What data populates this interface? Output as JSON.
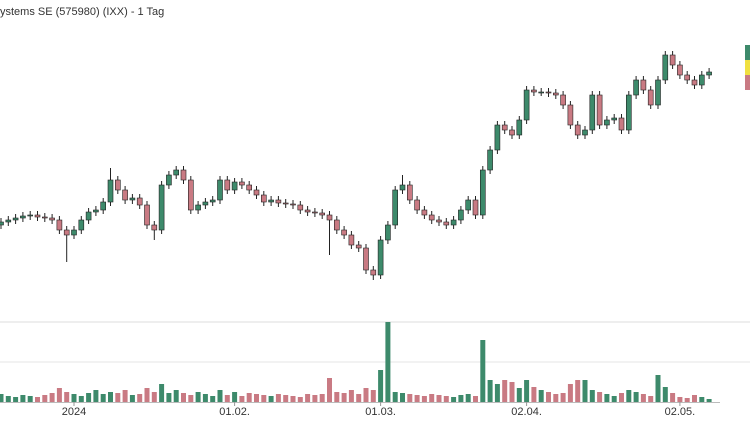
{
  "chart_data": {
    "type": "candlestick",
    "title": "ystems SE (575980) (IXX) - 1 Tag",
    "categories": [
      null,
      null,
      null,
      null,
      null,
      null,
      null,
      null,
      null,
      null,
      "2024",
      null,
      null,
      null,
      null,
      null,
      null,
      null,
      null,
      null,
      null,
      null,
      null,
      null,
      null,
      null,
      null,
      null,
      null,
      null,
      null,
      null,
      "01.02.",
      null,
      null,
      null,
      null,
      null,
      null,
      null,
      null,
      null,
      null,
      null,
      null,
      null,
      null,
      null,
      null,
      null,
      null,
      null,
      "01.03.",
      null,
      null,
      null,
      null,
      null,
      null,
      null,
      null,
      null,
      null,
      null,
      null,
      null,
      null,
      null,
      null,
      null,
      null,
      null,
      "02.04.",
      null,
      null,
      null,
      null,
      null,
      null,
      null,
      null,
      null,
      null,
      null,
      null,
      null,
      null,
      null,
      null,
      null,
      null,
      null,
      null,
      "02.05.",
      null,
      null,
      null,
      null
    ],
    "open": [
      105,
      108,
      110,
      112,
      114,
      115,
      113,
      112,
      110,
      100,
      95,
      100,
      110,
      118,
      120,
      128,
      150,
      140,
      130,
      132,
      125,
      105,
      100,
      145,
      155,
      160,
      150,
      120,
      125,
      128,
      130,
      150,
      140,
      148,
      145,
      140,
      135,
      128,
      130,
      127,
      126,
      125,
      120,
      118,
      117,
      115,
      110,
      100,
      95,
      85,
      82,
      60,
      55,
      90,
      105,
      140,
      145,
      130,
      120,
      115,
      110,
      108,
      105,
      110,
      120,
      130,
      115,
      160,
      180,
      205,
      200,
      195,
      210,
      240,
      238,
      238,
      237,
      235,
      225,
      205,
      195,
      200,
      235,
      205,
      210,
      212,
      200,
      235,
      250,
      240,
      225,
      250,
      275,
      265,
      255,
      250,
      245,
      255
    ],
    "high": [
      112,
      114,
      116,
      118,
      119,
      119,
      117,
      116,
      114,
      104,
      104,
      114,
      122,
      124,
      132,
      162,
      154,
      144,
      136,
      136,
      129,
      109,
      149,
      159,
      164,
      164,
      154,
      129,
      132,
      134,
      154,
      154,
      152,
      152,
      149,
      144,
      139,
      134,
      134,
      131,
      130,
      129,
      124,
      122,
      121,
      119,
      114,
      104,
      99,
      89,
      86,
      64,
      94,
      109,
      144,
      155,
      149,
      134,
      124,
      119,
      114,
      112,
      114,
      124,
      134,
      134,
      164,
      184,
      209,
      209,
      204,
      214,
      244,
      244,
      242,
      242,
      241,
      239,
      229,
      209,
      204,
      239,
      239,
      214,
      216,
      216,
      239,
      254,
      254,
      244,
      254,
      279,
      279,
      269,
      259,
      254,
      259,
      262
    ],
    "low": [
      101,
      104,
      106,
      108,
      110,
      109,
      108,
      106,
      96,
      68,
      91,
      96,
      106,
      114,
      116,
      124,
      136,
      126,
      126,
      121,
      101,
      90,
      96,
      141,
      151,
      146,
      116,
      116,
      121,
      124,
      126,
      136,
      136,
      141,
      136,
      131,
      124,
      124,
      123,
      122,
      121,
      116,
      114,
      113,
      111,
      75,
      96,
      91,
      81,
      78,
      56,
      50,
      51,
      86,
      101,
      136,
      126,
      116,
      111,
      106,
      104,
      101,
      101,
      106,
      116,
      111,
      111,
      156,
      176,
      196,
      191,
      191,
      206,
      234,
      234,
      233,
      231,
      221,
      201,
      191,
      191,
      196,
      201,
      201,
      206,
      196,
      196,
      231,
      236,
      221,
      221,
      246,
      261,
      251,
      246,
      241,
      241,
      251
    ],
    "close": [
      108,
      110,
      112,
      114,
      115,
      113,
      112,
      110,
      100,
      95,
      100,
      110,
      118,
      120,
      128,
      150,
      140,
      130,
      132,
      125,
      105,
      100,
      145,
      155,
      160,
      150,
      120,
      125,
      128,
      130,
      150,
      140,
      148,
      145,
      140,
      135,
      128,
      130,
      127,
      126,
      125,
      120,
      118,
      117,
      115,
      110,
      100,
      95,
      85,
      82,
      60,
      55,
      90,
      105,
      140,
      145,
      130,
      120,
      115,
      110,
      108,
      105,
      110,
      120,
      130,
      115,
      160,
      180,
      205,
      200,
      195,
      210,
      240,
      238,
      238,
      237,
      235,
      225,
      205,
      195,
      200,
      235,
      205,
      210,
      212,
      200,
      235,
      250,
      240,
      225,
      250,
      275,
      265,
      255,
      250,
      245,
      255,
      258
    ],
    "volume": [
      8,
      6,
      5,
      7,
      6,
      5,
      7,
      9,
      14,
      10,
      8,
      6,
      9,
      12,
      8,
      10,
      9,
      12,
      7,
      8,
      14,
      10,
      18,
      9,
      12,
      9,
      7,
      10,
      8,
      6,
      12,
      7,
      10,
      6,
      9,
      8,
      7,
      6,
      8,
      7,
      6,
      5,
      8,
      7,
      8,
      24,
      10,
      9,
      12,
      8,
      14,
      12,
      32,
      80,
      10,
      9,
      8,
      7,
      6,
      8,
      7,
      6,
      5,
      7,
      8,
      6,
      62,
      22,
      18,
      22,
      20,
      14,
      22,
      15,
      12,
      10,
      8,
      9,
      18,
      22,
      22,
      12,
      10,
      8,
      6,
      9,
      12,
      10,
      8,
      6,
      27,
      15,
      9,
      5,
      4,
      7,
      5,
      3
    ],
    "ylim": [
      40,
      290
    ],
    "volume_lim": [
      0,
      80
    ],
    "up_color": "#3d8a6b",
    "down_color": "#c97a83"
  }
}
